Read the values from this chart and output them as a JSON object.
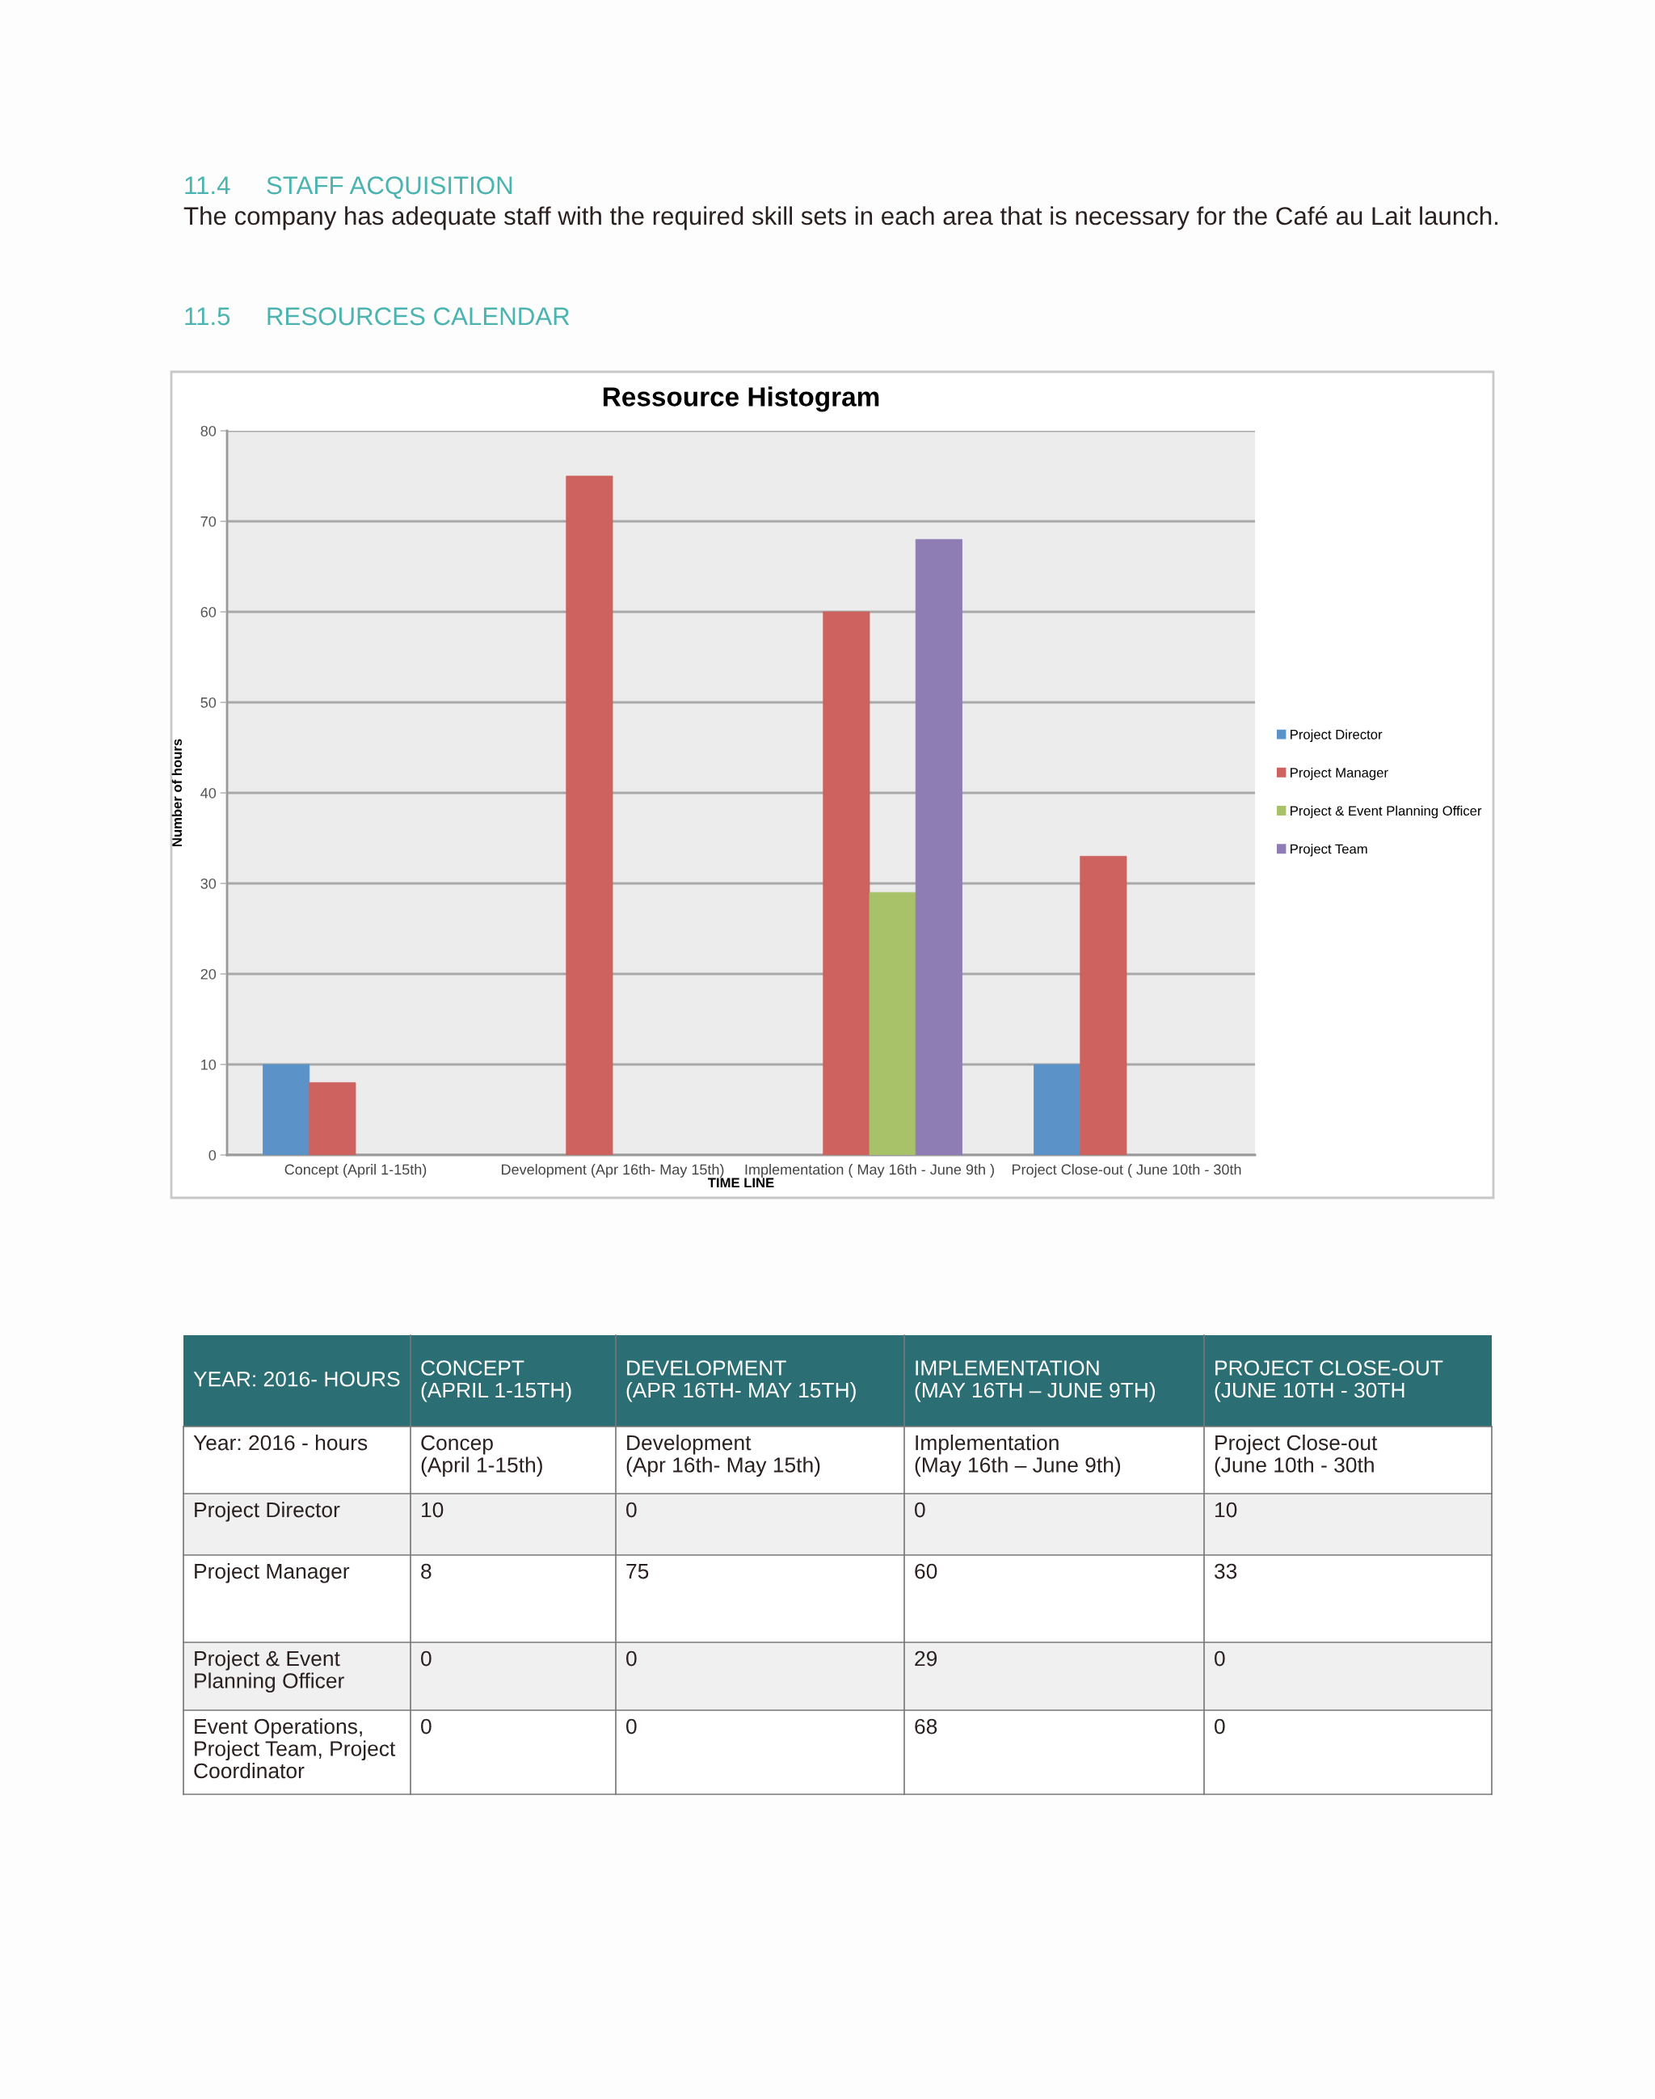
{
  "chart_data": {
    "type": "bar",
    "title": "Ressource Histogram",
    "xlabel": "TIME LINE",
    "ylabel": "Number of hours",
    "categories": [
      "Concept (April 1-15th)",
      "Development (Apr 16th- May 15th)",
      "Implementation ( May 16th - June 9th )",
      "Project Close-out ( June 10th - 30th"
    ],
    "series": [
      {
        "name": "Project Director",
        "color": "#5b93c8",
        "values": [
          10,
          0,
          0,
          10
        ]
      },
      {
        "name": "Project Manager",
        "color": "#cd625f",
        "values": [
          8,
          75,
          60,
          33
        ]
      },
      {
        "name": "Project & Event Planning Officer",
        "color": "#a8c26a",
        "values": [
          0,
          0,
          29,
          0
        ]
      },
      {
        "name": "Project Team",
        "color": "#8e7cb4",
        "values": [
          0,
          0,
          68,
          0
        ]
      }
    ],
    "ylim": [
      0,
      80
    ],
    "yticks": [
      0,
      10,
      20,
      30,
      40,
      50,
      60,
      70,
      80
    ],
    "grid": "y",
    "legend": "right",
    "data_labels": true,
    "annotations": [
      "11.4     STAFF ACQUISITION",
      "The company has adequate staff with the required skill sets in each area that is necessary for the Café au Lait launch.",
      "11.5     RESOURCES CALENDAR",
      "YEAR: 2016- HOURS",
      "CONCEPT\n(APRIL 1-15TH)",
      "DEVELOPMENT\n(APR 16TH- MAY 15TH)",
      "IMPLEMENTATION\n(MAY 16TH – JUNE 9TH)",
      "PROJECT CLOSE-OUT\n(JUNE 10TH - 30TH",
      "Year: 2016 - hours",
      "Concep\n(April 1-15th)",
      "Development\n(Apr 16th- May 15th)",
      "Implementation\n(May 16th – June 9th)",
      "Project Close-out\n(June 10th - 30th",
      "Project Director",
      "Project Manager",
      "Project & Event\nPlanning Officer",
      "Event Operations,\nProject Team, Project\nCoordinator"
    ]
  }
}
